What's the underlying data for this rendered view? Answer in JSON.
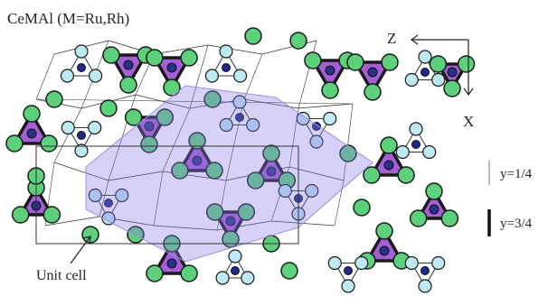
{
  "title": "CeMAl (M=Ru,Rh)",
  "axes": {
    "z_label": "Z",
    "x_label": "X"
  },
  "legend": [
    {
      "label": "y=1/4"
    },
    {
      "label": "y=3/4"
    }
  ],
  "annotation": "Unit cell"
}
